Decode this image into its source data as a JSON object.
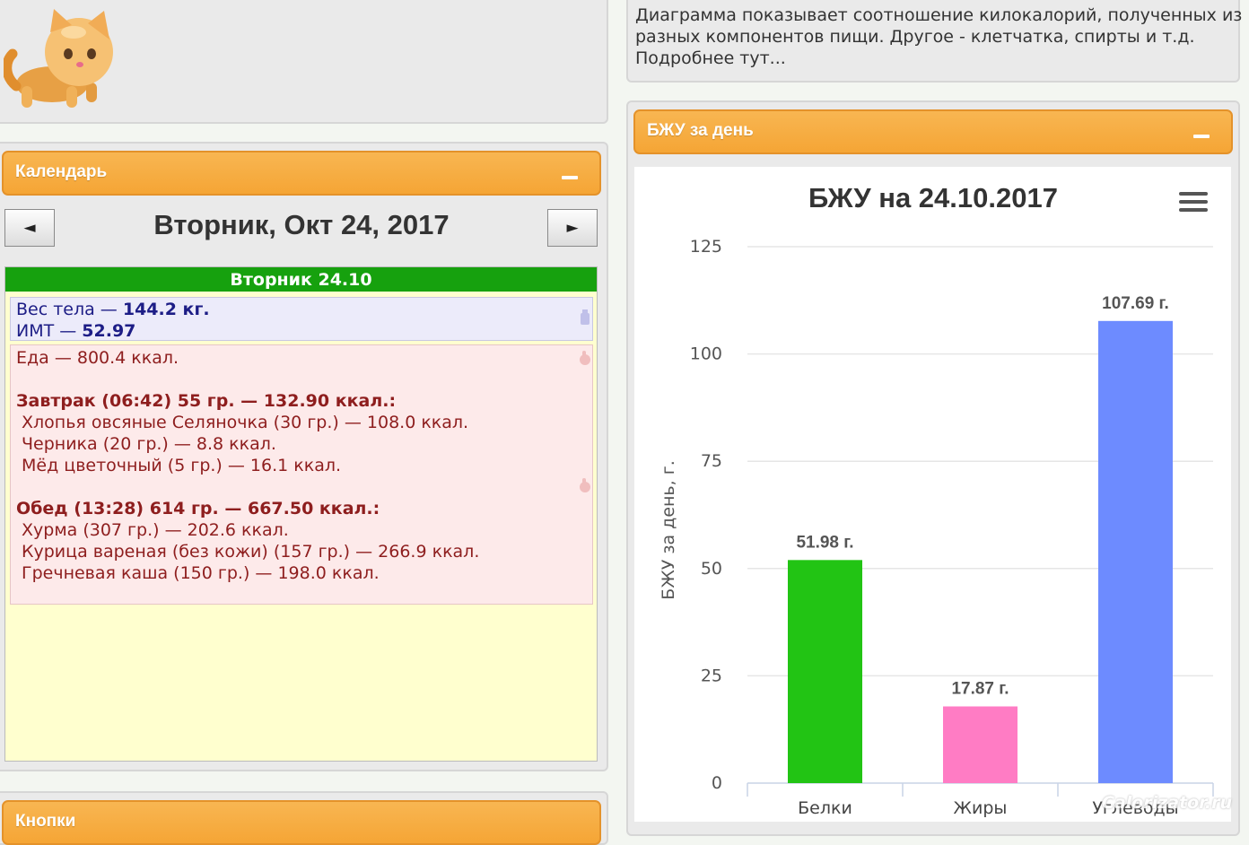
{
  "logo": {
    "icon": "cat-icon"
  },
  "calendar": {
    "panel_title": "Календарь",
    "prev_label": "◄",
    "next_label": "►",
    "date": "Вторник, Окт 24, 2017",
    "day_header": "Вторник 24.10",
    "weight_label": "Вес тела — ",
    "weight_value": "144.2 кг.",
    "bmi_label": "ИМТ — ",
    "bmi_value": "52.97",
    "food_total": "Еда — 800.4 ккал.",
    "meals": [
      {
        "title": "Завтрак (06:42) 55 гр. — 132.90 ккал.:",
        "items": [
          "Хлопья овсяные Селяночка (30 гр.) — 108.0 ккал.",
          "Черника (20 гр.) — 8.8 ккал.",
          "Мёд цветочный (5 гр.) — 16.1 ккал."
        ]
      },
      {
        "title": "Обед (13:28) 614 гр. — 667.50 ккал.:",
        "items": [
          "Хурма (307 гр.) — 202.6 ккал.",
          "Курица вареная (без кожи) (157 гр.) — 266.9 ккал.",
          "Гречневая каша (150 гр.) — 198.0 ккал."
        ]
      }
    ]
  },
  "next_panel_title": "Кнопки",
  "description": {
    "lines": [
      "Диаграмма показывает соотношение килокалорий, полученных из",
      "разных компонентов пищи. Другое - клетчатка, спирты и т.д.",
      "Подробнее тут..."
    ]
  },
  "bju_panel": {
    "title": "БЖУ за день"
  },
  "chart_data": {
    "type": "bar",
    "title": "БЖУ на 24.10.2017",
    "categories": [
      "Белки",
      "Жиры",
      "Углеводы"
    ],
    "values": [
      51.98,
      17.87,
      107.69
    ],
    "data_labels": [
      "51.98 г.",
      "17.87 г.",
      "107.69 г."
    ],
    "colors": [
      "#22c414",
      "#ff7cc4",
      "#6d8bff"
    ],
    "ylabel": "БЖУ за день, г.",
    "yticks": [
      0,
      25,
      50,
      75,
      100,
      125
    ],
    "ylim": [
      0,
      125
    ],
    "grid": true,
    "legend": "none"
  },
  "watermark": "Calorizator.ru"
}
